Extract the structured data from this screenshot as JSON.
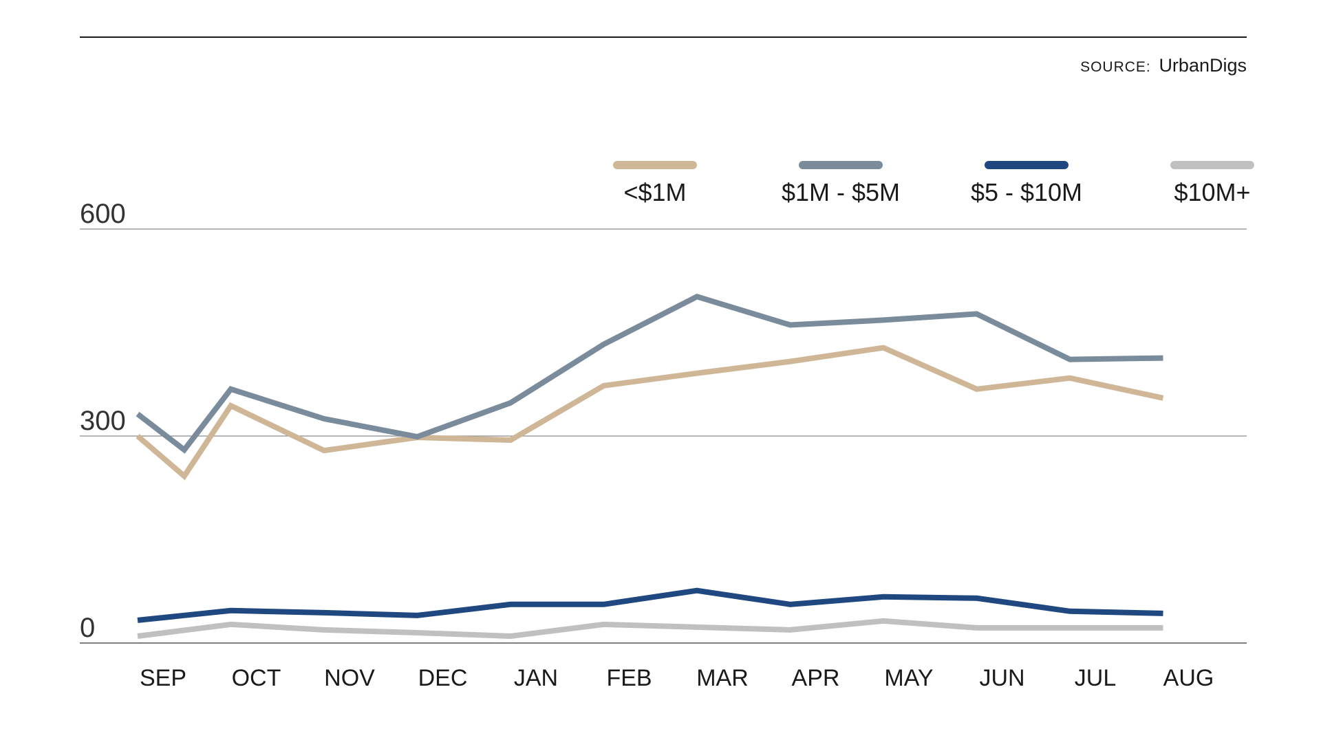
{
  "source": {
    "prefix": "SOURCE:",
    "name": "UrbanDigs"
  },
  "chart_data": {
    "type": "line",
    "categories": [
      "SEP",
      "OCT",
      "NOV",
      "DEC",
      "JAN",
      "FEB",
      "MAR",
      "APR",
      "MAY",
      "JUN",
      "JUL",
      "AUG"
    ],
    "y_ticks": [
      0,
      300,
      600
    ],
    "ylim": [
      0,
      600
    ],
    "grid": true,
    "legend_position": "top-right",
    "series": [
      {
        "name": "<$1M",
        "color": "#CFB697",
        "x": [
          "SEP",
          "SEP/OCT",
          "OCT",
          "NOV",
          "DEC",
          "JAN",
          "FEB",
          "MAR",
          "APR",
          "MAY",
          "JUN",
          "JUL",
          "AUG"
        ],
        "values": [
          300,
          242,
          344,
          279,
          298,
          294,
          373,
          391,
          408,
          428,
          368,
          384,
          355
        ]
      },
      {
        "name": "$1M - $5M",
        "color": "#7A8B9B",
        "x": [
          "SEP",
          "SEP/OCT",
          "OCT",
          "NOV",
          "DEC",
          "JAN",
          "FEB",
          "MAR",
          "APR",
          "MAY",
          "JUN",
          "JUL",
          "AUG"
        ],
        "values": [
          332,
          280,
          368,
          325,
          299,
          348,
          433,
          502,
          461,
          468,
          477,
          411,
          413
        ]
      },
      {
        "name": "$5 - $10M",
        "color": "#1F4780",
        "x": [
          "SEP",
          "OCT",
          "NOV",
          "DEC",
          "JAN",
          "FEB",
          "MAR",
          "APR",
          "MAY",
          "JUN",
          "JUL",
          "AUG"
        ],
        "values": [
          33,
          47,
          44,
          40,
          56,
          56,
          76,
          56,
          67,
          65,
          46,
          43
        ]
      },
      {
        "name": "$10M+",
        "color": "#C0C0C0",
        "x": [
          "SEP",
          "OCT",
          "NOV",
          "DEC",
          "JAN",
          "FEB",
          "MAR",
          "APR",
          "MAY",
          "JUN",
          "JUL",
          "AUG"
        ],
        "values": [
          10,
          27,
          19,
          15,
          10,
          27,
          23,
          19,
          32,
          22,
          22,
          22
        ]
      }
    ]
  }
}
